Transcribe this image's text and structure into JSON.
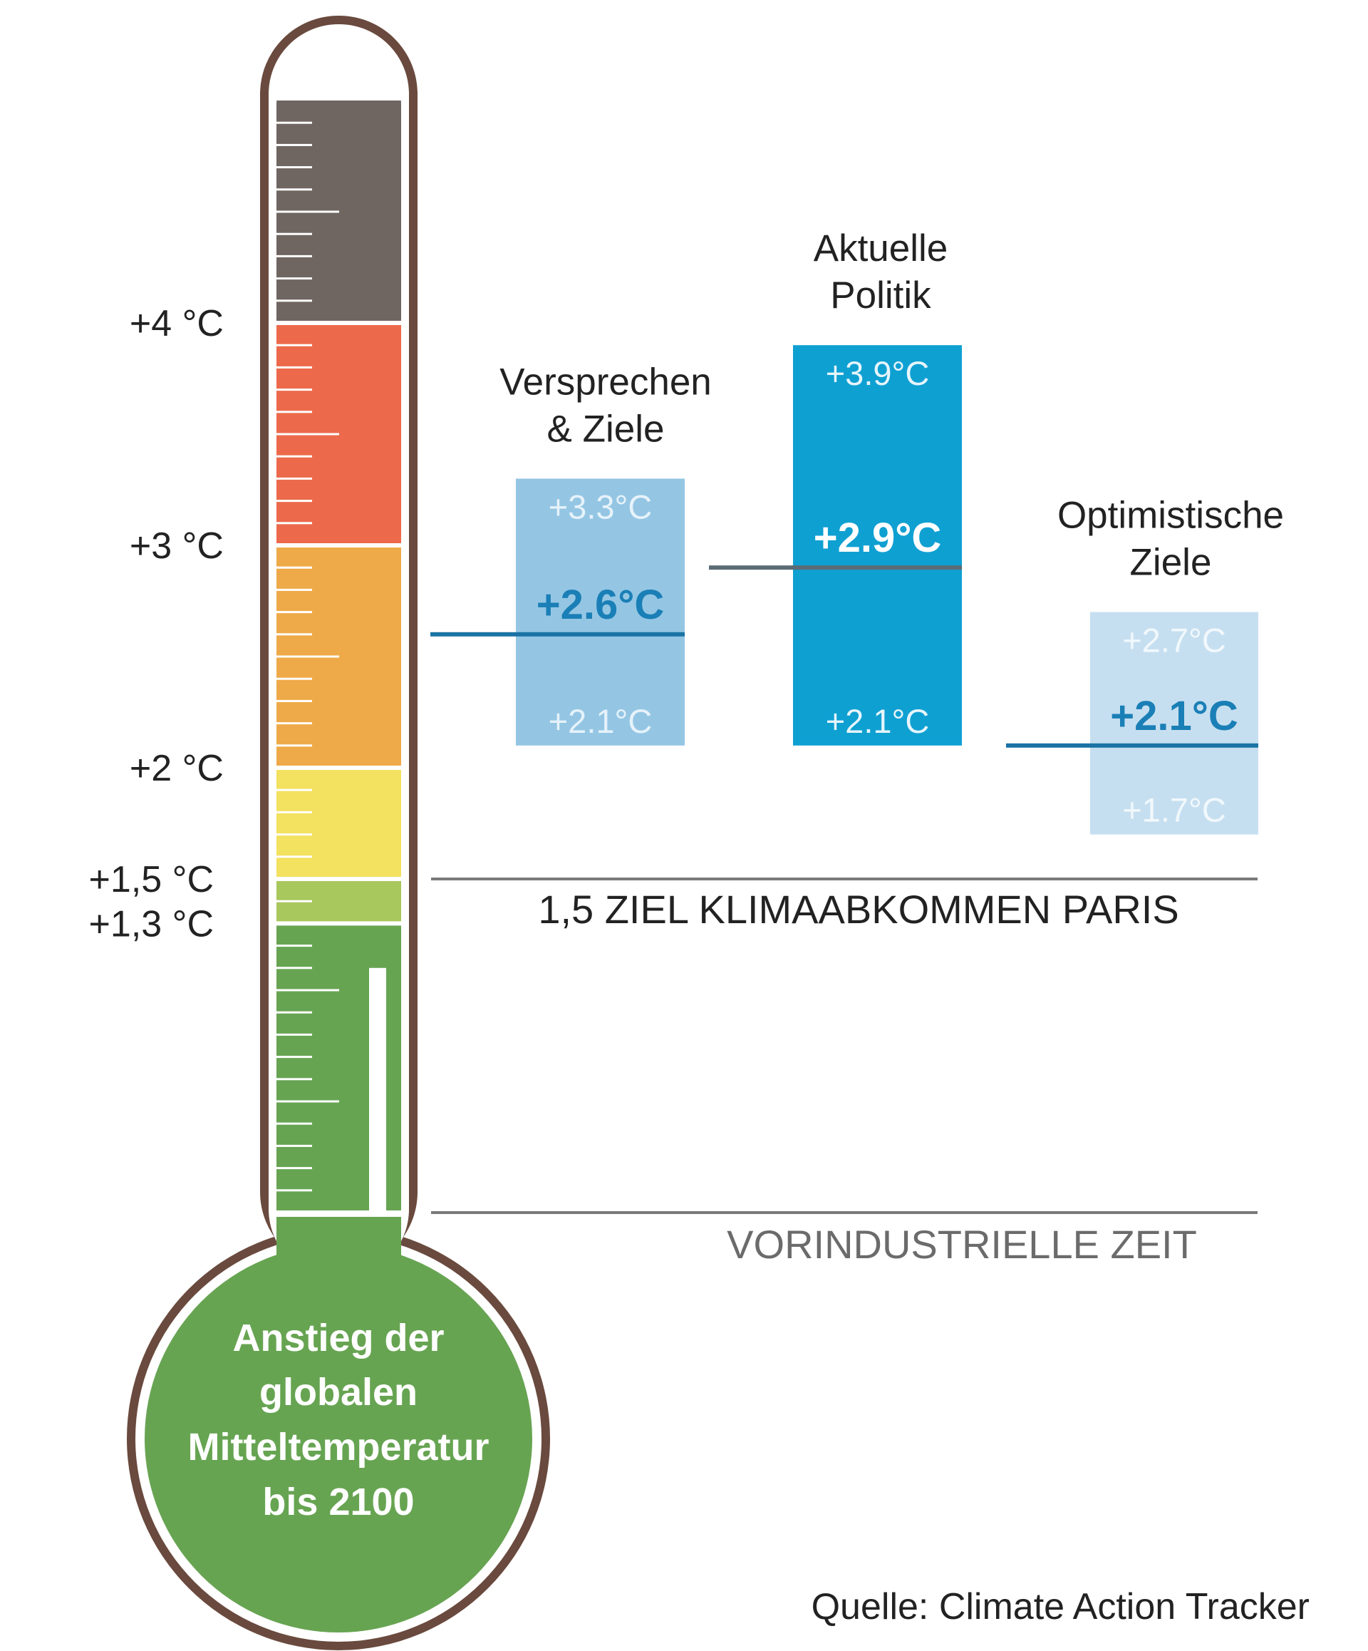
{
  "chart_data": {
    "type": "bar",
    "title": "",
    "thermometer": {
      "ylabels": [
        {
          "value": 4.0,
          "text": "+4 °C"
        },
        {
          "value": 3.0,
          "text": "+3 °C"
        },
        {
          "value": 2.0,
          "text": "+2 °C"
        },
        {
          "value": 1.5,
          "text": "+1,5 °C"
        },
        {
          "value": 1.3,
          "text": "+1,3 °C"
        }
      ],
      "bands": [
        {
          "from": 0.0,
          "to": 1.3,
          "color": "#67a452"
        },
        {
          "from": 1.3,
          "to": 1.5,
          "color": "#a8c75c"
        },
        {
          "from": 1.5,
          "to": 2.0,
          "color": "#f3e160"
        },
        {
          "from": 2.0,
          "to": 3.0,
          "color": "#eeaa48"
        },
        {
          "from": 3.0,
          "to": 4.0,
          "color": "#ec6a4b"
        },
        {
          "from": 4.0,
          "to": 5.0,
          "color": "#6f6561"
        }
      ],
      "mercury_level": 1.1,
      "bulb_text": [
        "Anstieg der",
        "globalen",
        "Mitteltemperatur",
        "bis 2100"
      ],
      "outline_color": "#6a4a3e"
    },
    "series": [
      {
        "title_lines": [
          "Versprechen",
          "& Ziele"
        ],
        "low": 2.1,
        "high": 3.3,
        "mid": 2.6,
        "low_label": "+2.1°C",
        "high_label": "+3.3°C",
        "mid_label": "+2.6°C",
        "box_color": "#94c6e4",
        "range_text_color": "#e6f2fa",
        "mid_text_color": "#1a7fb6",
        "line_color": "#1a73a4"
      },
      {
        "title_lines": [
          "Aktuelle",
          "Politik"
        ],
        "low": 2.1,
        "high": 3.9,
        "mid": 2.9,
        "low_label": "+2.1°C",
        "high_label": "+3.9°C",
        "mid_label": "+2.9°C",
        "box_color": "#0fa0d2",
        "range_text_color": "#e6f5fc",
        "mid_text_color": "#ffffff",
        "line_color": "#5b6b75"
      },
      {
        "title_lines": [
          "Optimistische",
          "Ziele"
        ],
        "low": 1.7,
        "high": 2.7,
        "mid": 2.1,
        "low_label": "+1.7°C",
        "high_label": "+2.7°C",
        "mid_label": "+2.1°C",
        "box_color": "#c6dff0",
        "range_text_color": "#f1f8fc",
        "mid_text_color": "#1a7fb6",
        "line_color": "#1a73a4"
      }
    ],
    "reference_lines": [
      {
        "value": 1.5,
        "label": "1,5 ZIEL KLIMAABKOMMEN PARIS",
        "color": "#7a7a7a",
        "label_color": "#222222"
      },
      {
        "value": 0.0,
        "label": "VORINDUSTRIELLE ZEIT",
        "color": "#7a7a7a",
        "label_color": "#6b6b6b"
      }
    ],
    "source": "Quelle: Climate Action Tracker"
  }
}
